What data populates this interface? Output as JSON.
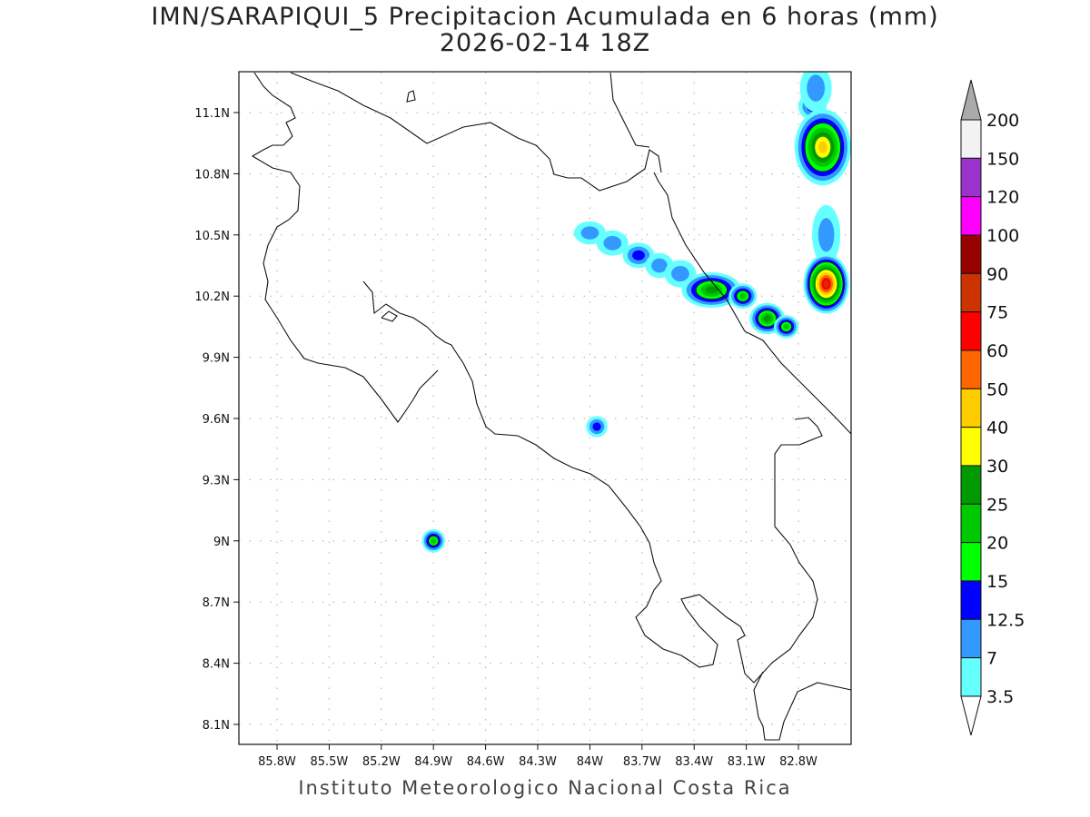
{
  "title": {
    "line1": "IMN/SARAPIQUI_5 Precipitacion Acumulada en 6 horas (mm)",
    "line2": "2026-02-14 18Z"
  },
  "credit": "Instituto Meteorologico Nacional Costa Rica",
  "map": {
    "lon_ticks": [
      "85.8W",
      "85.5W",
      "85.2W",
      "84.9W",
      "84.6W",
      "84.3W",
      "84W",
      "83.7W",
      "83.4W",
      "83.1W",
      "82.8W"
    ],
    "lon_values": [
      -85.8,
      -85.5,
      -85.2,
      -84.9,
      -84.6,
      -84.3,
      -84.0,
      -83.7,
      -83.4,
      -83.1,
      -82.8
    ],
    "lat_ticks": [
      "11.1N",
      "10.8N",
      "10.5N",
      "10.2N",
      "9.9N",
      "9.6N",
      "9.3N",
      "9N",
      "8.7N",
      "8.4N",
      "8.1N"
    ],
    "lat_values": [
      11.1,
      10.8,
      10.5,
      10.2,
      9.9,
      9.6,
      9.3,
      9.0,
      8.7,
      8.4,
      8.1
    ],
    "lon_range": [
      -85.99,
      -82.62
    ],
    "lat_range": [
      8.0,
      11.3
    ],
    "precip_cells": [
      {
        "lon": -84.9,
        "lat": 9.0,
        "max": 20,
        "rx": 0.035,
        "ry": 0.03
      },
      {
        "lon": -83.96,
        "lat": 9.56,
        "max": 12.5,
        "rx": 0.03,
        "ry": 0.025
      },
      {
        "lon": -84.0,
        "lat": 10.51,
        "max": 7,
        "rx": 0.06,
        "ry": 0.03
      },
      {
        "lon": -83.87,
        "lat": 10.46,
        "max": 7,
        "rx": 0.06,
        "ry": 0.035
      },
      {
        "lon": -83.72,
        "lat": 10.4,
        "max": 12.5,
        "rx": 0.06,
        "ry": 0.035
      },
      {
        "lon": -83.6,
        "lat": 10.35,
        "max": 7,
        "rx": 0.05,
        "ry": 0.035
      },
      {
        "lon": -83.48,
        "lat": 10.31,
        "max": 7,
        "rx": 0.06,
        "ry": 0.04
      },
      {
        "lon": -83.3,
        "lat": 10.23,
        "max": 25,
        "rx": 0.14,
        "ry": 0.06
      },
      {
        "lon": -83.12,
        "lat": 10.2,
        "max": 20,
        "rx": 0.05,
        "ry": 0.035
      },
      {
        "lon": -82.98,
        "lat": 10.09,
        "max": 25,
        "rx": 0.07,
        "ry": 0.05
      },
      {
        "lon": -82.87,
        "lat": 10.05,
        "max": 20,
        "rx": 0.04,
        "ry": 0.03
      },
      {
        "lon": -82.72,
        "lat": 11.13,
        "max": 12.5,
        "rx": 0.05,
        "ry": 0.04
      },
      {
        "lon": -82.66,
        "lat": 10.93,
        "max": 40,
        "rx": 0.13,
        "ry": 0.16
      },
      {
        "lon": -82.7,
        "lat": 11.22,
        "max": 7,
        "rx": 0.06,
        "ry": 0.09
      },
      {
        "lon": -82.64,
        "lat": 10.5,
        "max": 7,
        "rx": 0.05,
        "ry": 0.12
      },
      {
        "lon": -82.64,
        "lat": 10.26,
        "max": 75,
        "rx": 0.1,
        "ry": 0.12
      }
    ]
  },
  "colorbar": {
    "labels": [
      "200",
      "150",
      "120",
      "100",
      "90",
      "75",
      "60",
      "50",
      "40",
      "30",
      "25",
      "20",
      "15",
      "12.5",
      "7",
      "3.5"
    ],
    "levels": [
      200,
      150,
      120,
      100,
      90,
      75,
      60,
      50,
      40,
      30,
      25,
      20,
      15,
      12.5,
      7,
      3.5
    ],
    "colors": [
      "#f2f2f2",
      "#9933cc",
      "#ff00ff",
      "#990000",
      "#cc3300",
      "#ff0000",
      "#ff6600",
      "#ffcc00",
      "#ffff00",
      "#009900",
      "#00c800",
      "#00ff00",
      "#0000ff",
      "#3399ff",
      "#66ffff"
    ],
    "over_color": "#aaaaaa",
    "under_color": "#ffffff"
  }
}
